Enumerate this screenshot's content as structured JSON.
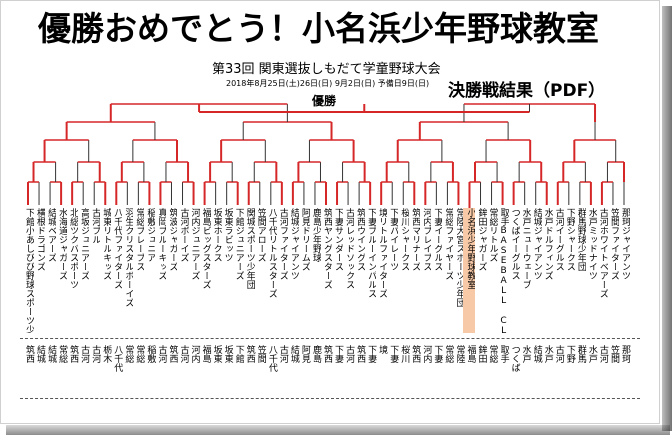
{
  "header": {
    "title": "優勝おめでとう！小名浜少年野球教室",
    "subtitle": "第33回 関東選抜しもだて学童野球大会",
    "dateline": "2018年8月25日(土)26日(日)   9月2日(日)  予備日9日(日)",
    "results_link": "決勝戦結果（PDF）",
    "champion_label": "優勝"
  },
  "teams": [
    {
      "name": "下館小あしびび野球スポーツ少年団",
      "region": "筑西"
    },
    {
      "name": "横根ドラゴンズ",
      "region": "結城"
    },
    {
      "name": "結城ベアーズ",
      "region": "結城"
    },
    {
      "name": "水海道ジャガーズ",
      "region": "常総"
    },
    {
      "name": "北総ツクバスポーツ",
      "region": "筑西"
    },
    {
      "name": "高坂ジュニアーズ",
      "region": "古河"
    },
    {
      "name": "古河ブル",
      "region": "古河"
    },
    {
      "name": "城東リトルキッズ",
      "region": "栃木"
    },
    {
      "name": "八千代ファイターズ",
      "region": "八千代"
    },
    {
      "name": "羽生クリスタルボーイズ",
      "region": "常総"
    },
    {
      "name": "常総ブレーブス",
      "region": "常総"
    },
    {
      "name": "稲敷ジュニア",
      "region": "稲敷"
    },
    {
      "name": "真岡ブルーキッズ",
      "region": "古河"
    },
    {
      "name": "筑波ジャガーズ",
      "region": "筑西"
    },
    {
      "name": "古河ボーイズ",
      "region": "古河"
    },
    {
      "name": "河内ジュニアーズ",
      "region": "河内"
    },
    {
      "name": "福島ビッグスターズ",
      "region": "福島"
    },
    {
      "name": "坂東ホークス",
      "region": "坂東"
    },
    {
      "name": "坂東ラビッツ",
      "region": "坂東"
    },
    {
      "name": "下館ジュニアーズ",
      "region": "下館"
    },
    {
      "name": "関城スポーツ少年団",
      "region": "筑西"
    },
    {
      "name": "笠間アローズ",
      "region": "笠間"
    },
    {
      "name": "八千代リトルスターズ",
      "region": "八千代"
    },
    {
      "name": "古河ファイターズ",
      "region": "古河"
    },
    {
      "name": "結城ジャイアンツ",
      "region": "結城"
    },
    {
      "name": "阿見ドリームズ",
      "region": "阿見"
    },
    {
      "name": "鹿島少年野球",
      "region": "鹿島"
    },
    {
      "name": "筑西ヤングスターズ",
      "region": "筑西"
    },
    {
      "name": "下妻サンダース",
      "region": "下妻"
    },
    {
      "name": "古河レッドソックス",
      "region": "古河"
    },
    {
      "name": "筑西ウイングス",
      "region": "筑西"
    },
    {
      "name": "下妻ブルーインパルス",
      "region": "下妻"
    },
    {
      "name": "境リトルファイターズ",
      "region": "境"
    },
    {
      "name": "下妻パイレーツ",
      "region": "下妻"
    },
    {
      "name": "桜川シャークス",
      "region": "桜川"
    },
    {
      "name": "筑西マリナーズ",
      "region": "筑西"
    },
    {
      "name": "河内ブレイブス",
      "region": "河内"
    },
    {
      "name": "下妻イーグルス",
      "region": "下妻"
    },
    {
      "name": "常総ファイヤーズ",
      "region": "常総"
    },
    {
      "name": "常陸大宮スポーツ少年団",
      "region": "常陸"
    },
    {
      "name": "小名浜少年野球教室",
      "region": "福島"
    },
    {
      "name": "鉾田ジャガーズ",
      "region": "鉾田"
    },
    {
      "name": "常総リトルズ",
      "region": "常総"
    },
    {
      "name": "取手BASEBALL CLUB",
      "region": "取手"
    },
    {
      "name": "つくばイーグルス",
      "region": "つくば"
    },
    {
      "name": "水戸ニューウェーブ",
      "region": "水戸"
    },
    {
      "name": "結城ジャイアンツ",
      "region": "結城"
    },
    {
      "name": "水戸ドルフィンズ",
      "region": "水戸"
    },
    {
      "name": "古河イーグルス",
      "region": "古河"
    },
    {
      "name": "下野シャークス",
      "region": "下野"
    },
    {
      "name": "群馬野球少年団",
      "region": "群馬"
    },
    {
      "name": "水戸ミッドナイツ",
      "region": "水戸"
    },
    {
      "name": "古河ホワイトベアーズ",
      "region": "古河"
    },
    {
      "name": "笠間ファイターズ",
      "region": "笠間"
    },
    {
      "name": "那珂ジャイアンツ",
      "region": "那珂"
    }
  ]
}
